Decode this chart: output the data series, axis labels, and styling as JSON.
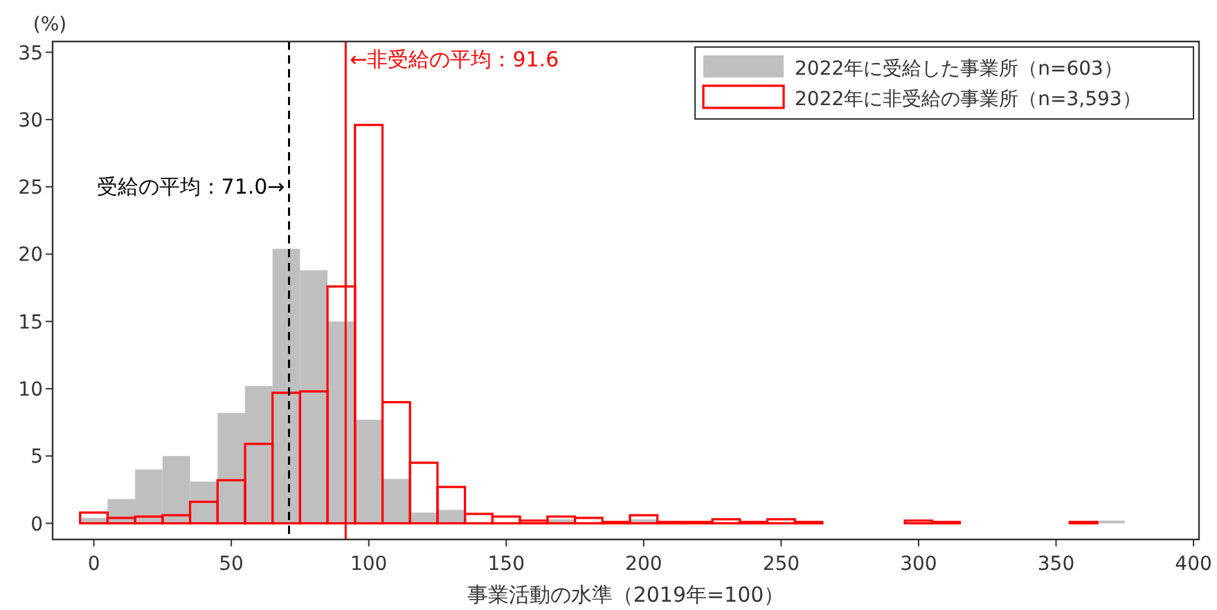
{
  "chart_data": {
    "type": "histogram",
    "xlabel": "事業活動の水準（2019年=100）",
    "ylabel": "(%)",
    "bins": [
      -5,
      5,
      15,
      25,
      35,
      45,
      55,
      65,
      75,
      85,
      95,
      105,
      115,
      125,
      135,
      145,
      155,
      165,
      175,
      185,
      195,
      205,
      215,
      225,
      235,
      245,
      255,
      265,
      275,
      285,
      295,
      305,
      315,
      325,
      335,
      345,
      355,
      365,
      375
    ],
    "series": [
      {
        "name": "2022年に受給した事業所（n=603）",
        "color": "#bfbfbf",
        "values": [
          0.4,
          1.8,
          4.0,
          5.0,
          3.1,
          8.2,
          10.2,
          20.4,
          18.8,
          15.0,
          7.7,
          3.3,
          0.8,
          1.0,
          0,
          0,
          0,
          0.3,
          0,
          0,
          0.3,
          0,
          0,
          0,
          0,
          0,
          0,
          0,
          0,
          0,
          0,
          0,
          0,
          0,
          0,
          0,
          0,
          0.2
        ]
      },
      {
        "name": "2022年に非受給の事業所（n=3,593）",
        "color": "#ff0000",
        "values": [
          0.8,
          0.4,
          0.5,
          0.6,
          1.6,
          3.2,
          5.9,
          9.7,
          9.8,
          17.6,
          29.6,
          9.0,
          4.5,
          2.7,
          0.7,
          0.5,
          0.2,
          0.5,
          0.4,
          0.1,
          0.6,
          0.1,
          0.1,
          0.3,
          0.1,
          0.3,
          0.1,
          0,
          0,
          0,
          0.2,
          0.1,
          0,
          0,
          0,
          0,
          0.1,
          0
        ]
      }
    ],
    "xlim": [
      -15,
      402
    ],
    "ylim": [
      -1.2,
      35.8
    ],
    "xticks": [
      0,
      50,
      100,
      150,
      200,
      250,
      300,
      350,
      400
    ],
    "yticks": [
      0,
      5,
      10,
      15,
      20,
      25,
      30,
      35
    ],
    "ref_lines": [
      {
        "axis": "x",
        "value": 71.0,
        "label": "受給の平均：71.0→",
        "color": "#000000",
        "line_style": "dashed"
      },
      {
        "axis": "x",
        "value": 91.6,
        "label": "←非受給の平均：91.6",
        "color": "#ff0000",
        "line_style": "solid"
      }
    ],
    "legend": "top right",
    "grid": false
  }
}
